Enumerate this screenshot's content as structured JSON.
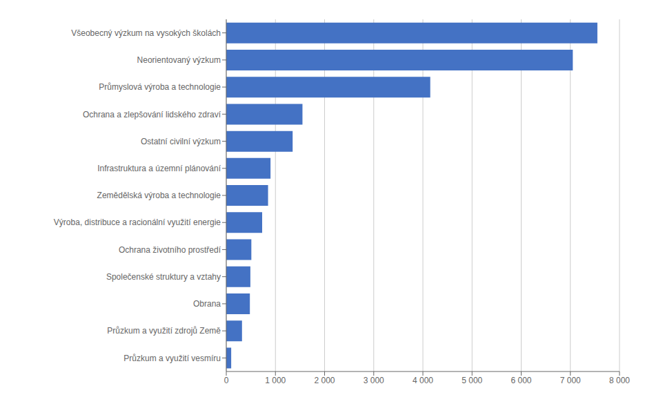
{
  "chart_data": {
    "type": "bar",
    "orientation": "horizontal",
    "categories": [
      "Průzkum a využití vesmíru",
      "Průzkum a využití zdrojů Země",
      "Obrana",
      "Společenské struktury a vztahy",
      "Ochrana životního prostředí",
      "Výroba, distribuce a racionální využití energie",
      "Zemědělská výroba a technologie",
      "Infrastruktura a územní plánování",
      "Ostatní civilní výzkum",
      "Ochrana a zlepšování lidského zdraví",
      "Průmyslová výroba a technologie",
      "Neorientovaný výzkum",
      "Všeobecný výzkum na vysokých školách"
    ],
    "values": [
      100,
      320,
      480,
      490,
      510,
      730,
      850,
      900,
      1350,
      1550,
      4150,
      7050,
      7550
    ],
    "color": "#4472C4",
    "xlim": [
      0,
      8000
    ],
    "xticks": [
      0,
      {
        "value": 1000,
        "label": "1 000"
      },
      {
        "value": 2000,
        "label": "2 000"
      },
      {
        "value": 3000,
        "label": "3 000"
      },
      {
        "value": 4000,
        "label": "4 000"
      },
      {
        "value": 5000,
        "label": "5 000"
      },
      {
        "value": 6000,
        "label": "6 000"
      },
      {
        "value": 7000,
        "label": "7 000"
      },
      {
        "value": 8000,
        "label": "8 000"
      }
    ],
    "grid": true
  }
}
